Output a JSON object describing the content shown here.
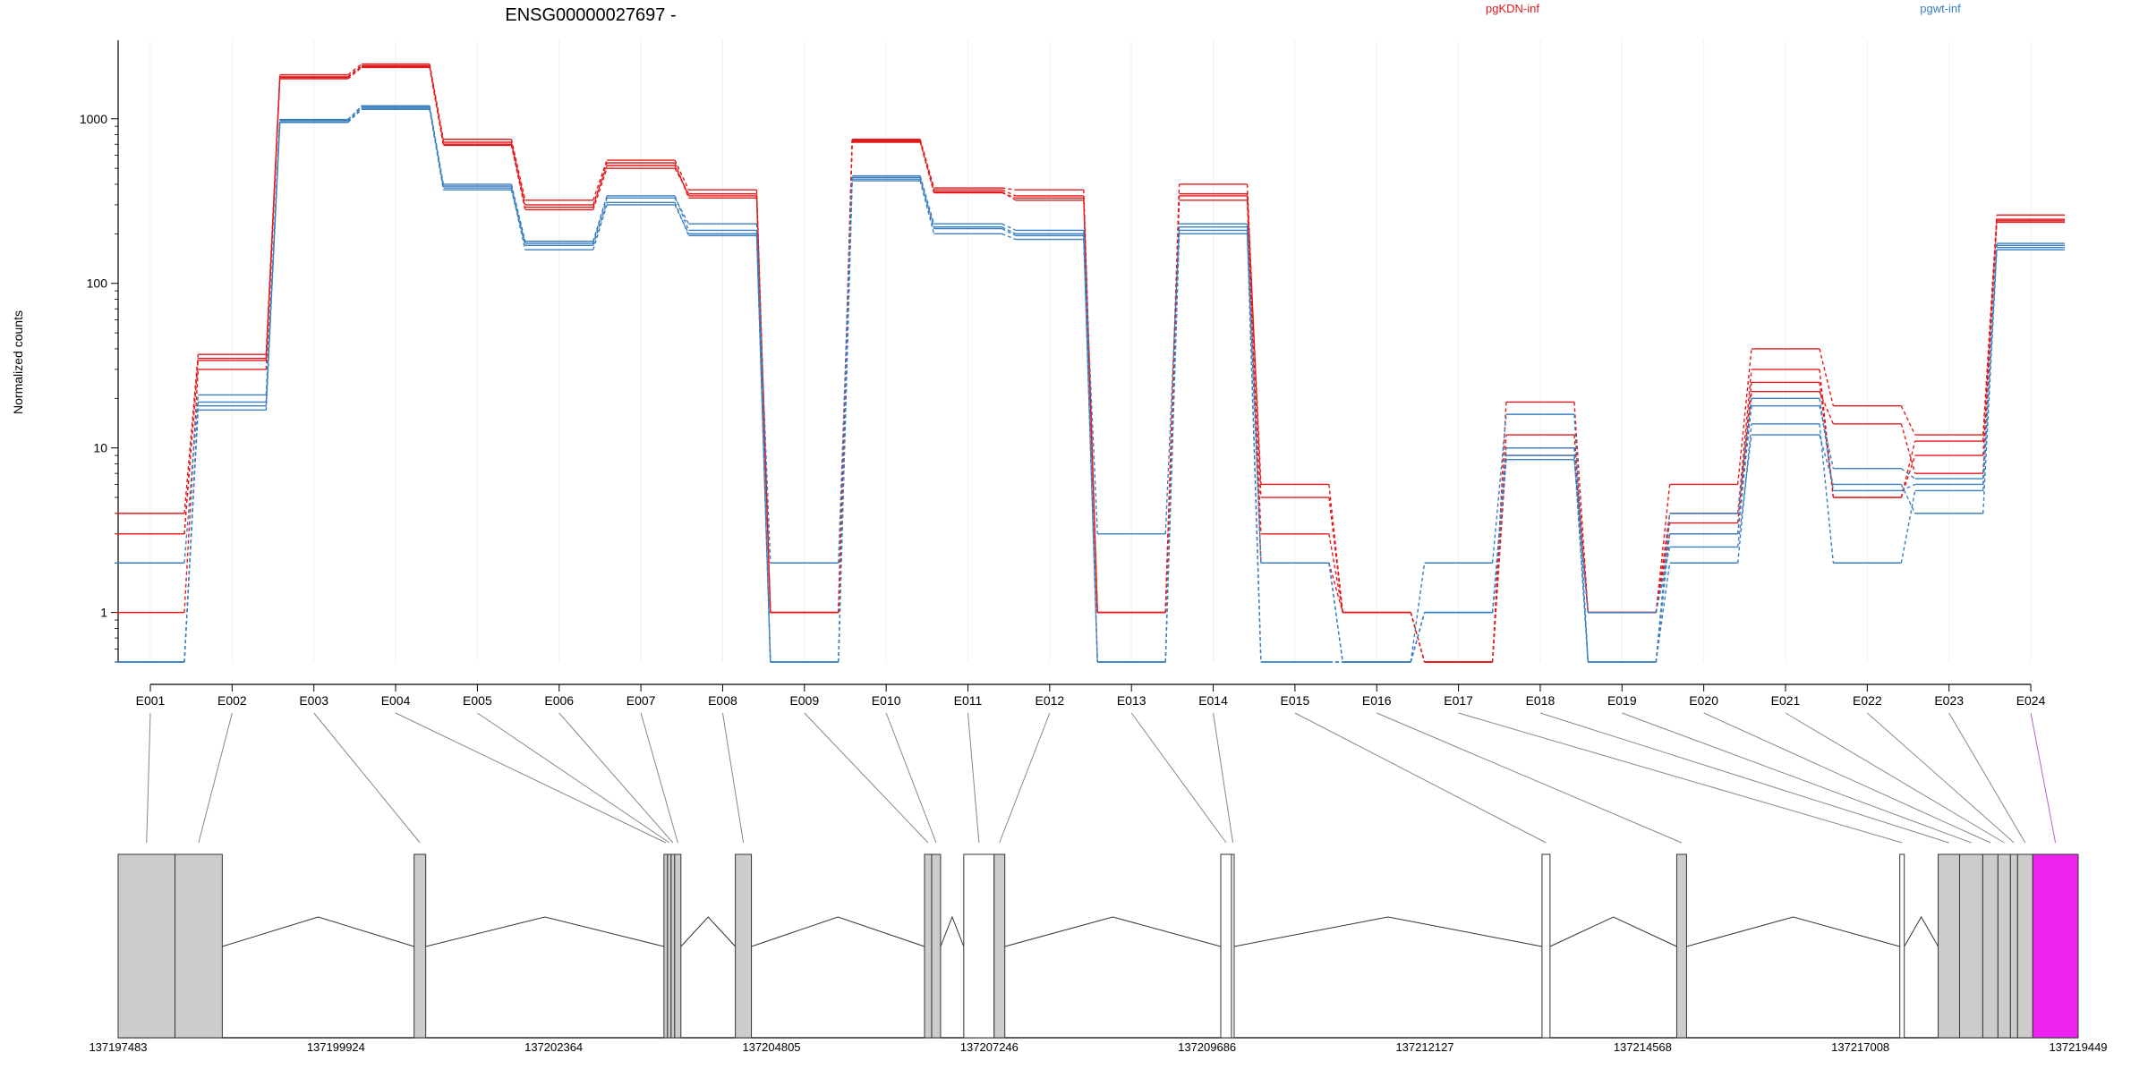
{
  "chart_data": {
    "type": "line",
    "title": "ENSG00000027697 -",
    "ylabel": "Normalized counts",
    "xlabel": "",
    "y_scale": "log",
    "y_ticks": [
      1,
      10,
      100,
      1000
    ],
    "y_tick_labels": [
      "1",
      "10",
      "100",
      "1000"
    ],
    "ylim": [
      0.5,
      3000
    ],
    "grid": "light vertical lines at each exon",
    "legend_placement": "top",
    "categories": [
      "E001",
      "E002",
      "E003",
      "E004",
      "E005",
      "E006",
      "E007",
      "E008",
      "E009",
      "E010",
      "E011",
      "E012",
      "E013",
      "E014",
      "E015",
      "E016",
      "E017",
      "E018",
      "E019",
      "E020",
      "E021",
      "E022",
      "E023",
      "E024"
    ],
    "series": [
      {
        "name": "pgKDN-inf",
        "color": "#e31a1c",
        "values": [
          1,
          30,
          1750,
          2050,
          700,
          280,
          500,
          350,
          1,
          720,
          360,
          320,
          1,
          320,
          2,
          1,
          0.5,
          10,
          1,
          3,
          22,
          14,
          7,
          240
        ]
      },
      {
        "name": "pgKDN-inf",
        "color": "#e31a1c",
        "values": [
          3,
          35,
          1800,
          2100,
          720,
          300,
          520,
          340,
          1,
          740,
          370,
          340,
          1,
          340,
          3,
          1,
          0.5,
          12,
          1,
          4,
          30,
          5,
          9,
          245
        ]
      },
      {
        "name": "pgKDN-inf",
        "color": "#e31a1c",
        "values": [
          4,
          37,
          1850,
          2150,
          750,
          320,
          560,
          370,
          1,
          750,
          380,
          370,
          1,
          400,
          5,
          1,
          0.5,
          19,
          1,
          6,
          40,
          18,
          12,
          260
        ]
      },
      {
        "name": "pgKDN-inf",
        "color": "#e31a1c",
        "values": [
          3,
          34,
          1780,
          2080,
          690,
          290,
          540,
          330,
          1,
          730,
          355,
          330,
          1,
          350,
          6,
          1,
          0.5,
          9,
          1,
          3.5,
          25,
          5,
          11,
          235
        ]
      },
      {
        "name": "pgwt-inf",
        "color": "#3a7fbf",
        "values": [
          2,
          21,
          980,
          1200,
          390,
          175,
          330,
          230,
          2,
          450,
          230,
          210,
          3,
          220,
          2,
          0.5,
          2,
          16,
          0.5,
          3,
          18,
          7.5,
          6.5,
          175
        ]
      },
      {
        "name": "pgwt-inf",
        "color": "#3a7fbf",
        "values": [
          0.5,
          18,
          960,
          1160,
          380,
          160,
          300,
          200,
          0.5,
          430,
          215,
          195,
          0.5,
          210,
          0.5,
          0.5,
          1,
          9,
          0.5,
          2,
          14,
          2,
          5.5,
          165
        ]
      },
      {
        "name": "pgwt-inf",
        "color": "#3a7fbf",
        "values": [
          0.5,
          17,
          950,
          1140,
          370,
          170,
          310,
          195,
          0.5,
          420,
          200,
          185,
          0.5,
          200,
          2,
          0.5,
          1,
          8.5,
          1,
          2.5,
          12,
          6,
          4,
          160
        ]
      },
      {
        "name": "pgwt-inf",
        "color": "#3a7fbf",
        "values": [
          0.5,
          19,
          990,
          1180,
          400,
          180,
          340,
          210,
          0.5,
          440,
          220,
          200,
          0.5,
          230,
          0.5,
          0.5,
          1,
          10,
          0.5,
          4,
          20,
          5.5,
          6,
          170
        ]
      }
    ],
    "legend": [
      {
        "label": "pgKDN-inf",
        "color": "#e31a1c"
      },
      {
        "label": "pgwt-inf",
        "color": "#3a7fbf"
      }
    ],
    "highlight_color": "#ee22ee",
    "genomic_axis": {
      "range": [
        137197483,
        137219449
      ],
      "ticks": [
        137197483,
        137199924,
        137202364,
        137204805,
        137207246,
        137209686,
        137212127,
        137214568,
        137217008,
        137219449
      ],
      "tick_labels": [
        "137197483",
        "137199924",
        "137202364",
        "137204805",
        "137207246",
        "137209686",
        "137212127",
        "137214568",
        "137217008",
        "137219449"
      ]
    },
    "exon_regions": [
      {
        "id": "E001",
        "start": 137197483,
        "end": 137198120,
        "fill": "#cccccc"
      },
      {
        "id": "E002",
        "start": 137198120,
        "end": 137198650,
        "fill": "#cccccc"
      },
      {
        "id": "E003",
        "start": 137200800,
        "end": 137200930,
        "fill": "#cccccc"
      },
      {
        "id": "E004",
        "start": 137203600,
        "end": 137203640,
        "fill": "#cccccc"
      },
      {
        "id": "E005",
        "start": 137203640,
        "end": 137203680,
        "fill": "#cccccc"
      },
      {
        "id": "E006",
        "start": 137203680,
        "end": 137203720,
        "fill": "#cccccc"
      },
      {
        "id": "E007",
        "start": 137203720,
        "end": 137203790,
        "fill": "#cccccc"
      },
      {
        "id": "E008",
        "start": 137204400,
        "end": 137204580,
        "fill": "#cccccc"
      },
      {
        "id": "E009",
        "start": 137206520,
        "end": 137206600,
        "fill": "#cccccc"
      },
      {
        "id": "E010",
        "start": 137206600,
        "end": 137206700,
        "fill": "#cccccc"
      },
      {
        "id": "E011",
        "start": 137206960,
        "end": 137207300,
        "fill": "#ffffff"
      },
      {
        "id": "E012",
        "start": 137207300,
        "end": 137207420,
        "fill": "#cccccc"
      },
      {
        "id": "E013",
        "start": 137209840,
        "end": 137209960,
        "fill": "#ffffff"
      },
      {
        "id": "E014",
        "start": 137209960,
        "end": 137209990,
        "fill": "#ffffff"
      },
      {
        "id": "E015",
        "start": 137213440,
        "end": 137213530,
        "fill": "#ffffff"
      },
      {
        "id": "E016",
        "start": 137214950,
        "end": 137215060,
        "fill": "#cccccc"
      },
      {
        "id": "E017",
        "start": 137217450,
        "end": 137217500,
        "fill": "#ffffff"
      },
      {
        "id": "E018",
        "start": 137217880,
        "end": 137218120,
        "fill": "#cccccc"
      },
      {
        "id": "E019",
        "start": 137218120,
        "end": 137218380,
        "fill": "#cccccc"
      },
      {
        "id": "E020",
        "start": 137218380,
        "end": 137218550,
        "fill": "#cccccc"
      },
      {
        "id": "E021",
        "start": 137218550,
        "end": 137218690,
        "fill": "#cccccc"
      },
      {
        "id": "E022",
        "start": 137218690,
        "end": 137218770,
        "fill": "#cccccc"
      },
      {
        "id": "E023",
        "start": 137218770,
        "end": 137218940,
        "fill": "#cccccc"
      },
      {
        "id": "E024",
        "start": 137218940,
        "end": 137219449,
        "fill": "#ee22ee"
      }
    ]
  }
}
